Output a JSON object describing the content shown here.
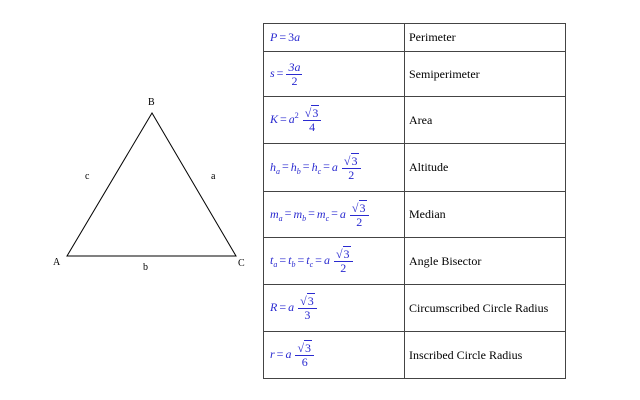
{
  "triangle": {
    "vertices": {
      "A": "A",
      "B": "B",
      "C": "C"
    },
    "sides": {
      "a": "a",
      "b": "b",
      "c": "c"
    }
  },
  "table": {
    "rows": [
      {
        "name": "Perimeter",
        "f": {
          "lhs": "P",
          "coef": "3",
          "var": "a"
        }
      },
      {
        "name": "Semiperimeter",
        "f": {
          "lhs": "s",
          "num": "3a",
          "den": "2"
        }
      },
      {
        "name": "Area",
        "f": {
          "lhs": "K",
          "var": "a",
          "exp": "2",
          "rad": "3",
          "den": "4"
        }
      },
      {
        "name": "Altitude",
        "f": {
          "lhs": "h",
          "s1": "a",
          "s2": "b",
          "s3": "c",
          "coef": "a",
          "rad": "3",
          "den": "2"
        }
      },
      {
        "name": "Median",
        "f": {
          "lhs": "m",
          "s1": "a",
          "s2": "b",
          "s3": "c",
          "coef": "a",
          "rad": "3",
          "den": "2"
        }
      },
      {
        "name": "Angle Bisector",
        "f": {
          "lhs": "t",
          "s1": "a",
          "s2": "b",
          "s3": "c",
          "coef": "a",
          "rad": "3",
          "den": "2"
        }
      },
      {
        "name": "Circumscribed Circle Radius",
        "f": {
          "lhs": "R",
          "coef": "a",
          "rad": "3",
          "den": "3"
        }
      },
      {
        "name": "Inscribed Circle Radius",
        "f": {
          "lhs": "r",
          "coef": "a",
          "rad": "3",
          "den": "6"
        }
      }
    ]
  }
}
